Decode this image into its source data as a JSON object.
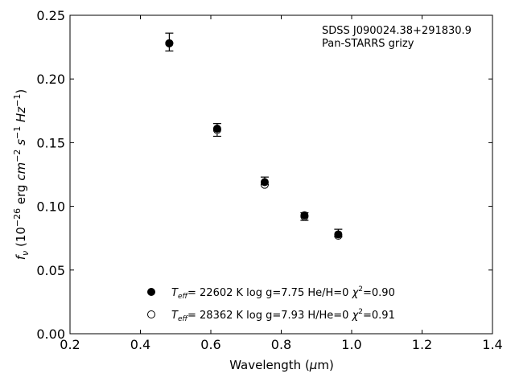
{
  "chart_data": {
    "type": "scatter",
    "xlabel_main": "Wavelength (",
    "xlabel_mu": "μ",
    "xlabel_unit": "m)",
    "ylabel_prefix": "f",
    "ylabel_sub": "ν",
    "ylabel_open": " (10",
    "ylabel_exp1": "−26",
    "ylabel_erg": " erg ",
    "ylabel_cm": "cm",
    "ylabel_exp2": "−2",
    "ylabel_s": " s",
    "ylabel_exp3": "−1",
    "ylabel_hz": " Hz",
    "ylabel_exp4": "−1",
    "ylabel_close": ")",
    "xlim": [
      0.2,
      1.4
    ],
    "ylim": [
      0.0,
      0.25
    ],
    "xticks": [
      "0.2",
      "0.4",
      "0.6",
      "0.8",
      "1.0",
      "1.2",
      "1.4"
    ],
    "yticks": [
      "0.00",
      "0.05",
      "0.10",
      "0.15",
      "0.20",
      "0.25"
    ],
    "annotation_line1": "SDSS J090024.38+291830.9",
    "annotation_line2": "Pan-STARRS grizy",
    "observed": {
      "x": [
        0.482,
        0.618,
        0.753,
        0.866,
        0.962
      ],
      "y": [
        0.229,
        0.16,
        0.12,
        0.092,
        0.079
      ],
      "yerr": [
        0.007,
        0.005,
        0.003,
        0.003,
        0.003
      ]
    },
    "series": [
      {
        "style": "filled",
        "x": [
          0.482,
          0.618,
          0.753,
          0.866,
          0.962
        ],
        "y": [
          0.228,
          0.161,
          0.119,
          0.093,
          0.078
        ],
        "legend": {
          "t": "T",
          "eff": "eff",
          "text": "= 22602 K  log g=7.75  He/H=0  ",
          "chi": "χ",
          "exp": "2",
          "tail": "=0.90"
        }
      },
      {
        "style": "open",
        "x": [
          0.482,
          0.618,
          0.753,
          0.866,
          0.962
        ],
        "y": [
          0.228,
          0.16,
          0.117,
          0.092,
          0.077
        ],
        "legend": {
          "t": "T",
          "eff": "eff",
          "text": "= 28362 K  log g=7.93  H/He=0  ",
          "chi": "χ",
          "exp": "2",
          "tail": "=0.91"
        }
      }
    ],
    "legend_position": "lower-center",
    "grid": false
  }
}
